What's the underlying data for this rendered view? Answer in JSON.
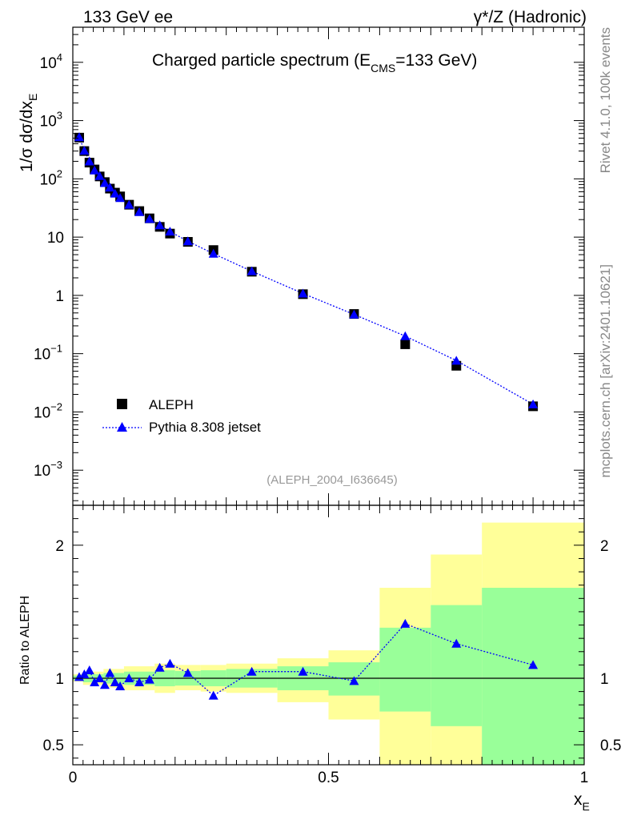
{
  "header": {
    "left": "133 GeV ee",
    "right": "γ*/Z (Hadronic)"
  },
  "side": {
    "rivet": "Rivet 4.1.0,  100k events",
    "source": "mcplots.cern.ch [arXiv:2401.10621]"
  },
  "chart_data": [
    {
      "type": "scatter",
      "panel": "main",
      "title": "Charged particle spectrum (E",
      "title_sub": "CMS",
      "title_tail": "=133 GeV)",
      "ylabel": "1/σ  dσ/dx",
      "ylabel_sub": "E",
      "xlabel": "x",
      "xlabel_sub": "E",
      "yscale": "log",
      "xlim": [
        0,
        1
      ],
      "ylim": [
        0.00025,
        40000
      ],
      "y_ticks": [
        {
          "v": 0.001,
          "base": "10",
          "exp": "−3"
        },
        {
          "v": 0.01,
          "base": "10",
          "exp": "−2"
        },
        {
          "v": 0.1,
          "base": "10",
          "exp": "−1"
        },
        {
          "v": 1,
          "base": "1",
          "exp": ""
        },
        {
          "v": 10,
          "base": "10",
          "exp": ""
        },
        {
          "v": 100,
          "base": "10",
          "exp": "2"
        },
        {
          "v": 1000,
          "base": "10",
          "exp": "3"
        },
        {
          "v": 10000,
          "base": "10",
          "exp": "4"
        }
      ],
      "annotation": "(ALEPH_2004_I636645)",
      "legend_position": "bottom-left",
      "x": [
        0.0125,
        0.0225,
        0.0325,
        0.0425,
        0.0525,
        0.0625,
        0.0725,
        0.0825,
        0.0925,
        0.11,
        0.13,
        0.15,
        0.17,
        0.19,
        0.225,
        0.275,
        0.35,
        0.45,
        0.55,
        0.65,
        0.75,
        0.9
      ],
      "series": [
        {
          "name": "ALEPH",
          "marker": "square",
          "color": "#000000",
          "values": [
            510,
            300,
            190,
            145,
            110,
            88,
            68,
            58,
            50,
            36,
            28,
            21,
            15,
            11.5,
            8.3,
            6.0,
            2.55,
            1.05,
            0.48,
            0.145,
            0.062,
            0.0125
          ]
        },
        {
          "name": "Pythia 8.308 jetset",
          "marker": "triangle",
          "color": "#0000ff",
          "line": "dotted",
          "values": [
            520,
            305,
            200,
            140,
            112,
            85,
            71,
            56,
            47,
            36,
            27,
            20.5,
            16,
            12.5,
            8.5,
            5.2,
            2.6,
            1.08,
            0.47,
            0.2,
            0.076,
            0.0135
          ]
        }
      ]
    },
    {
      "type": "scatter",
      "panel": "ratio",
      "ylabel": "Ratio to ALEPH",
      "xlabel": "x",
      "xlabel_sub": "E",
      "xlim": [
        0,
        1
      ],
      "ylim": [
        0.35,
        2.3
      ],
      "x_ticks": [
        {
          "v": 0,
          "label": "0"
        },
        {
          "v": 0.5,
          "label": "0.5"
        },
        {
          "v": 1,
          "label": "1"
        }
      ],
      "y_ticks": [
        {
          "v": 0.5,
          "label": "0.5"
        },
        {
          "v": 1,
          "label": "1"
        },
        {
          "v": 2,
          "label": "2"
        }
      ],
      "bands": [
        {
          "x0": 0.0,
          "x1": 0.02,
          "inner": [
            0.985,
            1.02
          ],
          "outer": [
            0.975,
            1.03
          ]
        },
        {
          "x0": 0.02,
          "x1": 0.06,
          "inner": [
            0.97,
            1.03
          ],
          "outer": [
            0.95,
            1.05
          ]
        },
        {
          "x0": 0.06,
          "x1": 0.1,
          "inner": [
            0.96,
            1.04
          ],
          "outer": [
            0.93,
            1.07
          ]
        },
        {
          "x0": 0.1,
          "x1": 0.16,
          "inner": [
            0.95,
            1.05
          ],
          "outer": [
            0.91,
            1.09
          ]
        },
        {
          "x0": 0.16,
          "x1": 0.2,
          "inner": [
            0.94,
            1.06
          ],
          "outer": [
            0.89,
            1.11
          ]
        },
        {
          "x0": 0.2,
          "x1": 0.25,
          "inner": [
            0.945,
            1.055
          ],
          "outer": [
            0.91,
            1.1
          ]
        },
        {
          "x0": 0.25,
          "x1": 0.3,
          "inner": [
            0.94,
            1.06
          ],
          "outer": [
            0.9,
            1.1
          ]
        },
        {
          "x0": 0.3,
          "x1": 0.4,
          "inner": [
            0.93,
            1.07
          ],
          "outer": [
            0.89,
            1.11
          ]
        },
        {
          "x0": 0.4,
          "x1": 0.5,
          "inner": [
            0.91,
            1.09
          ],
          "outer": [
            0.82,
            1.15
          ]
        },
        {
          "x0": 0.5,
          "x1": 0.6,
          "inner": [
            0.87,
            1.12
          ],
          "outer": [
            0.69,
            1.21
          ]
        },
        {
          "x0": 0.6,
          "x1": 0.7,
          "inner": [
            0.75,
            1.38
          ],
          "outer": [
            0.35,
            1.68
          ]
        },
        {
          "x0": 0.7,
          "x1": 0.8,
          "inner": [
            0.64,
            1.55
          ],
          "outer": [
            0.35,
            1.93
          ]
        },
        {
          "x0": 0.8,
          "x1": 1.0,
          "inner": [
            0.35,
            1.68
          ],
          "outer": [
            0.35,
            2.17
          ]
        }
      ],
      "reference": 1,
      "series": [
        {
          "name": "Pythia 8.308 jetset",
          "marker": "triangle",
          "color": "#0000ff",
          "line": "dotted",
          "values": [
            1.01,
            1.03,
            1.06,
            0.97,
            1.0,
            0.95,
            1.04,
            0.97,
            0.94,
            1.0,
            0.97,
            0.99,
            1.08,
            1.11,
            1.04,
            0.87,
            1.05,
            1.05,
            0.98,
            1.41,
            1.26,
            1.1
          ]
        }
      ]
    }
  ]
}
